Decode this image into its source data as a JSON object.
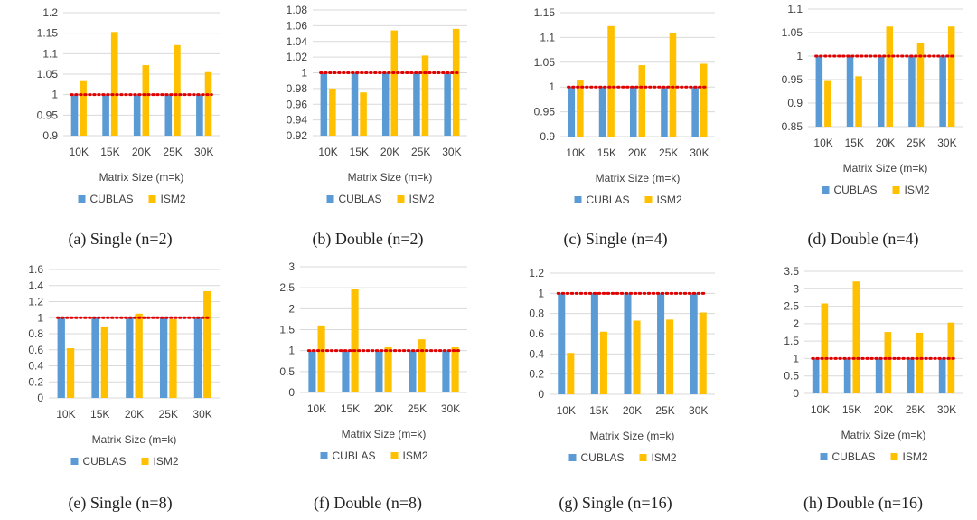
{
  "colors": {
    "cublas": "#5B9BD5",
    "ism2": "#FFC000",
    "baseline": "#E00000"
  },
  "chart_data": [
    {
      "type": "bar",
      "caption": "(a) Single (n=2)",
      "xlabel": "Matrix Size (m=k)",
      "ylabel": "",
      "categories": [
        "10K",
        "15K",
        "20K",
        "25K",
        "30K"
      ],
      "ylim": [
        0.9,
        1.2
      ],
      "yticks": [
        0.9,
        0.95,
        1,
        1.05,
        1.1,
        1.15,
        1.2
      ],
      "baseline": 1,
      "grid": true,
      "legend_position": "bottom",
      "series": [
        {
          "name": "CUBLAS",
          "values": [
            1,
            1,
            1,
            1,
            1
          ]
        },
        {
          "name": "ISM2",
          "values": [
            1.033,
            1.153,
            1.072,
            1.121,
            1.055
          ]
        }
      ]
    },
    {
      "type": "bar",
      "caption": "(b) Double (n=2)",
      "xlabel": "Matrix Size (m=k)",
      "ylabel": "",
      "categories": [
        "10K",
        "15K",
        "20K",
        "25K",
        "30K"
      ],
      "ylim": [
        0.92,
        1.08
      ],
      "yticks": [
        0.92,
        0.94,
        0.96,
        0.98,
        1,
        1.02,
        1.04,
        1.06,
        1.08
      ],
      "baseline": 1,
      "grid": true,
      "legend_position": "bottom",
      "series": [
        {
          "name": "CUBLAS",
          "values": [
            1,
            1,
            1,
            1,
            1
          ]
        },
        {
          "name": "ISM2",
          "values": [
            0.98,
            0.975,
            1.054,
            1.022,
            1.056
          ]
        }
      ]
    },
    {
      "type": "bar",
      "caption": "(c) Single (n=4)",
      "xlabel": "Matrix Size (m=k)",
      "ylabel": "",
      "categories": [
        "10K",
        "15K",
        "20K",
        "25K",
        "30K"
      ],
      "ylim": [
        0.9,
        1.15
      ],
      "yticks": [
        0.9,
        0.95,
        1,
        1.05,
        1.1,
        1.15
      ],
      "baseline": 1,
      "grid": true,
      "legend_position": "bottom",
      "series": [
        {
          "name": "CUBLAS",
          "values": [
            1,
            1,
            1,
            1,
            1
          ]
        },
        {
          "name": "ISM2",
          "values": [
            1.013,
            1.123,
            1.044,
            1.108,
            1.047
          ]
        }
      ]
    },
    {
      "type": "bar",
      "caption": "(d) Double (n=4)",
      "xlabel": "Matrix Size (m=k)",
      "ylabel": "",
      "categories": [
        "10K",
        "15K",
        "20K",
        "25K",
        "30K"
      ],
      "ylim": [
        0.85,
        1.1
      ],
      "yticks": [
        0.85,
        0.9,
        0.95,
        1,
        1.05,
        1.1
      ],
      "baseline": 1,
      "grid": true,
      "legend_position": "bottom",
      "series": [
        {
          "name": "CUBLAS",
          "values": [
            1,
            1,
            1,
            1,
            1
          ]
        },
        {
          "name": "ISM2",
          "values": [
            0.947,
            0.957,
            1.063,
            1.027,
            1.063
          ]
        }
      ]
    },
    {
      "type": "bar",
      "caption": "(e) Single (n=8)",
      "xlabel": "Matrix Size (m=k)",
      "ylabel": "",
      "categories": [
        "10K",
        "15K",
        "20K",
        "25K",
        "30K"
      ],
      "ylim": [
        0,
        1.6
      ],
      "yticks": [
        0,
        0.2,
        0.4,
        0.6,
        0.8,
        1,
        1.2,
        1.4,
        1.6
      ],
      "baseline": 1,
      "grid": true,
      "legend_position": "bottom",
      "series": [
        {
          "name": "CUBLAS",
          "values": [
            1,
            1,
            1,
            1,
            1
          ]
        },
        {
          "name": "ISM2",
          "values": [
            0.62,
            0.88,
            1.05,
            0.98,
            1.33
          ]
        }
      ]
    },
    {
      "type": "bar",
      "caption": "(f) Double (n=8)",
      "xlabel": "Matrix Size (m=k)",
      "ylabel": "",
      "categories": [
        "10K",
        "15K",
        "20K",
        "25K",
        "30K"
      ],
      "ylim": [
        0,
        3
      ],
      "yticks": [
        0,
        0.5,
        1,
        1.5,
        2,
        2.5,
        3
      ],
      "baseline": 1,
      "grid": true,
      "legend_position": "bottom",
      "series": [
        {
          "name": "CUBLAS",
          "values": [
            1,
            1,
            1,
            1,
            1
          ]
        },
        {
          "name": "ISM2",
          "values": [
            1.6,
            2.46,
            1.08,
            1.27,
            1.08
          ]
        }
      ]
    },
    {
      "type": "bar",
      "caption": "(g) Single (n=16)",
      "xlabel": "Matrix Size (m=k)",
      "ylabel": "",
      "categories": [
        "10K",
        "15K",
        "20K",
        "25K",
        "30K"
      ],
      "ylim": [
        0,
        1.2
      ],
      "yticks": [
        0,
        0.2,
        0.4,
        0.6,
        0.8,
        1,
        1.2
      ],
      "baseline": 1,
      "grid": true,
      "legend_position": "bottom",
      "series": [
        {
          "name": "CUBLAS",
          "values": [
            1,
            1,
            1,
            1,
            1
          ]
        },
        {
          "name": "ISM2",
          "values": [
            0.41,
            0.62,
            0.73,
            0.74,
            0.81
          ]
        }
      ]
    },
    {
      "type": "bar",
      "caption": "(h) Double (n=16)",
      "xlabel": "Matrix Size (m=k)",
      "ylabel": "",
      "categories": [
        "10K",
        "15K",
        "20K",
        "25K",
        "30K"
      ],
      "ylim": [
        0,
        3.5
      ],
      "yticks": [
        0,
        0.5,
        1,
        1.5,
        2,
        2.5,
        3,
        3.5
      ],
      "baseline": 1,
      "grid": true,
      "legend_position": "bottom",
      "series": [
        {
          "name": "CUBLAS",
          "values": [
            1,
            1,
            1,
            1,
            1
          ]
        },
        {
          "name": "ISM2",
          "values": [
            2.58,
            3.21,
            1.76,
            1.74,
            2.03
          ]
        }
      ]
    }
  ]
}
